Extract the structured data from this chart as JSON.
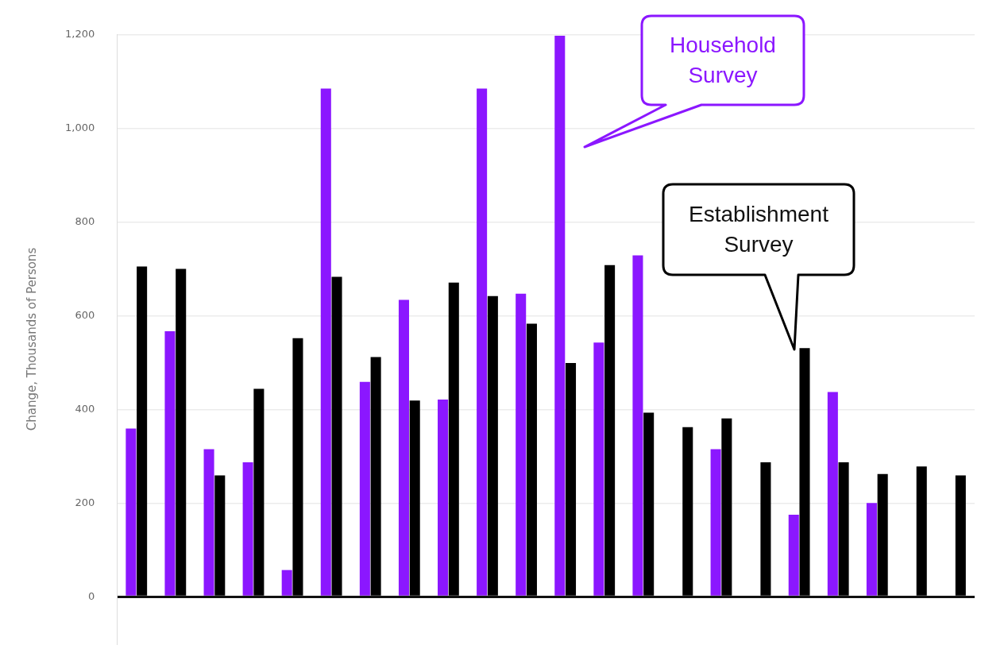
{
  "chart_data": {
    "type": "bar",
    "ylabel": "Change, Thousands of Persons",
    "categories": [
      null,
      null,
      null,
      null,
      null,
      null,
      null,
      null,
      null,
      null,
      null,
      null,
      null,
      null,
      null,
      null,
      null,
      null,
      null,
      null,
      null,
      null
    ],
    "series": [
      {
        "name": "Household Survey",
        "color": "#8b17ff",
        "values": [
          359,
          567,
          315,
          287,
          57,
          1085,
          459,
          634,
          421,
          1085,
          647,
          1198,
          543,
          729,
          null,
          315,
          null,
          175,
          437,
          200,
          null,
          null
        ]
      },
      {
        "name": "Establishment Survey",
        "color": "#000000",
        "values": [
          705,
          700,
          259,
          444,
          552,
          683,
          512,
          419,
          671,
          642,
          583,
          499,
          708,
          393,
          362,
          381,
          287,
          531,
          287,
          262,
          278,
          259
        ]
      }
    ],
    "ylim": [
      -100,
      1200
    ],
    "yticks": [
      0,
      200,
      400,
      600,
      800,
      {
        "value": 1000,
        "label": "1,000"
      },
      {
        "value": 1200,
        "label": "1,200"
      }
    ],
    "grid": "y",
    "legend": false
  }
}
